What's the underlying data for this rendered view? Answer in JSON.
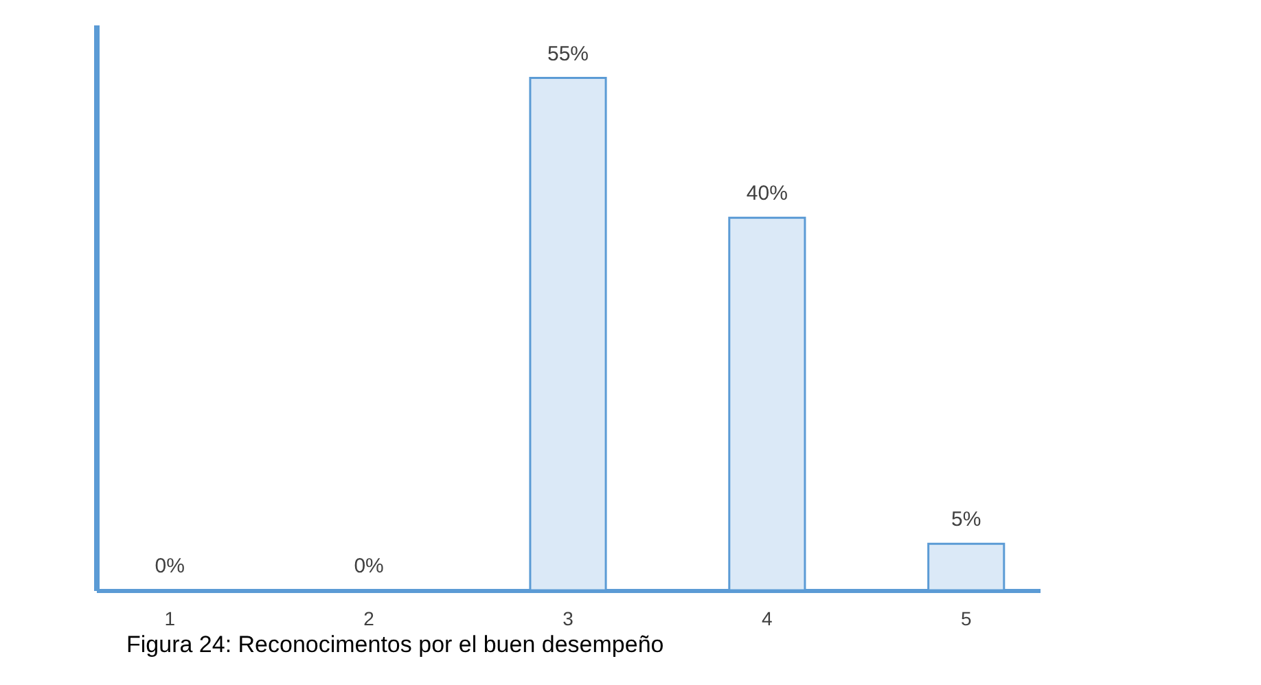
{
  "chart_data": {
    "type": "bar",
    "title": "Figura 24: Reconocimentos por el buen desempeño",
    "categories": [
      "1",
      "2",
      "3",
      "4",
      "5"
    ],
    "values": [
      0,
      0,
      55,
      40,
      5
    ],
    "value_labels": [
      "0%",
      "0%",
      "55%",
      "40%",
      "5%"
    ],
    "color": "#dbe9f7",
    "grid": false
  }
}
